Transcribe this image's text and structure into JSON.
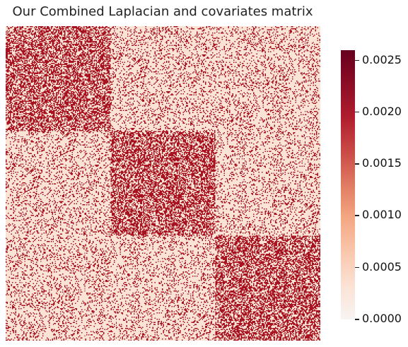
{
  "chart_data": {
    "type": "heatmap",
    "title": "Our Combined Laplacian and covariates matrix",
    "xlabel": "",
    "ylabel": "",
    "matrix_size": 300,
    "blocks": [
      {
        "rows": [
          0,
          100
        ],
        "cols": [
          0,
          100
        ],
        "high_density": 0.55
      },
      {
        "rows": [
          100,
          200
        ],
        "cols": [
          100,
          200
        ],
        "high_density": 0.55
      },
      {
        "rows": [
          200,
          300
        ],
        "cols": [
          200,
          300
        ],
        "high_density": 0.55
      }
    ],
    "background_high_density": 0.2,
    "low_value": 0.0002,
    "high_value": 0.0024,
    "colorbar": {
      "range": [
        0.0,
        0.0026
      ],
      "ticks": [
        "0.0000",
        "0.0005",
        "0.0010",
        "0.0015",
        "0.0020",
        "0.0025"
      ],
      "tick_values": [
        0.0,
        0.0005,
        0.001,
        0.0015,
        0.002,
        0.0025
      ],
      "colormap": "Reds (RdBu_r upper half)"
    },
    "colors": {
      "low": "#fbe3d6",
      "high": "#a8111f",
      "max": "#67001f"
    }
  }
}
